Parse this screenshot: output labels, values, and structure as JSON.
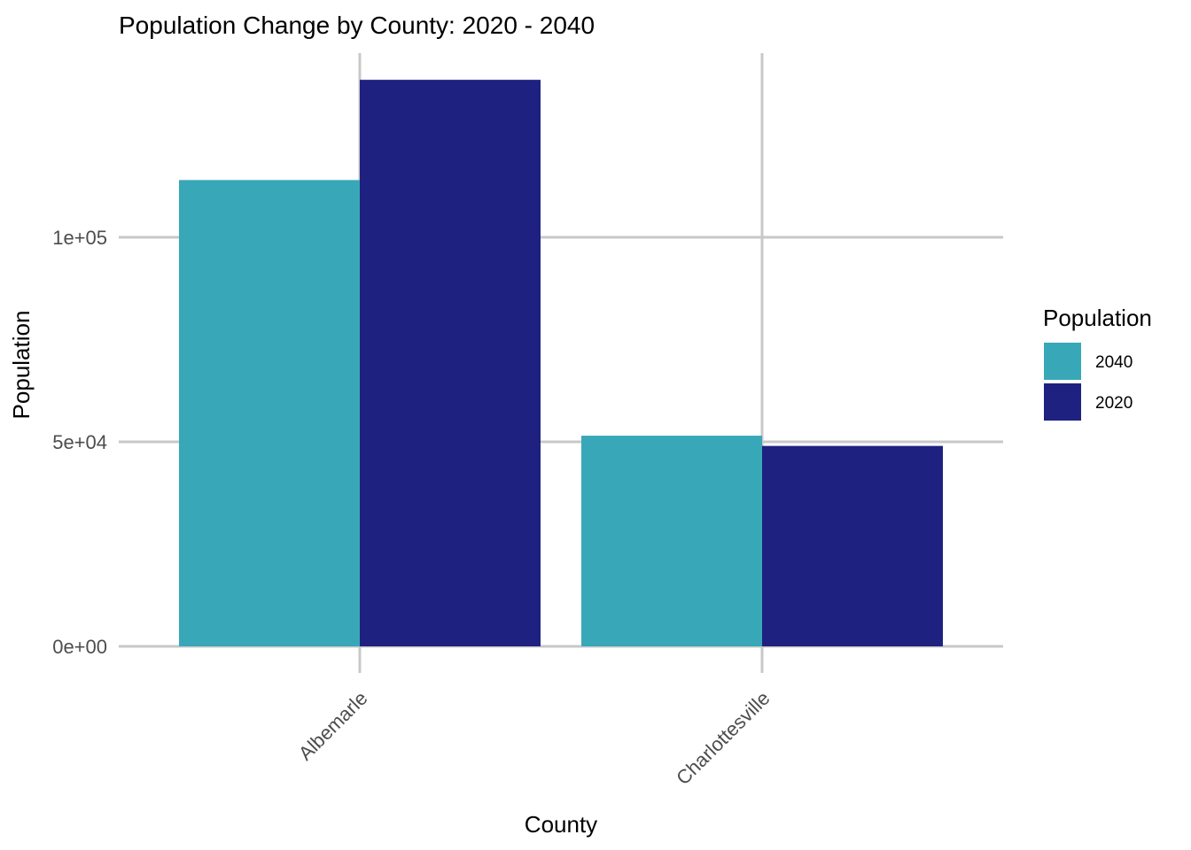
{
  "chart_data": {
    "type": "bar",
    "title": "Population Change by County: 2020 - 2040",
    "xlabel": "County",
    "ylabel": "Population",
    "categories": [
      "Albemarle",
      "Charlottesville"
    ],
    "series": [
      {
        "name": "2040",
        "color": "#38a8b8",
        "values": [
          114000,
          51500
        ]
      },
      {
        "name": "2020",
        "color": "#1e2180",
        "values": [
          138500,
          49000
        ]
      }
    ],
    "y_ticks": [
      {
        "value": 0,
        "label": "0e+00"
      },
      {
        "value": 50000,
        "label": "5e+04"
      },
      {
        "value": 100000,
        "label": "1e+05"
      }
    ],
    "legend": {
      "title": "Population",
      "position": "right"
    },
    "grid": true
  }
}
